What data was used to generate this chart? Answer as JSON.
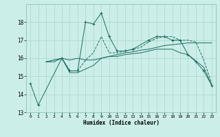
{
  "xlabel": "Humidex (Indice chaleur)",
  "bg_color": "#cceee8",
  "grid_color": "#aad4ce",
  "line_color": "#1a6b5e",
  "xlim": [
    -0.5,
    23.5
  ],
  "ylim": [
    13,
    19
  ],
  "yticks": [
    13,
    14,
    15,
    16,
    17,
    18
  ],
  "xticks": [
    0,
    1,
    2,
    3,
    4,
    5,
    6,
    7,
    8,
    9,
    10,
    11,
    12,
    13,
    14,
    15,
    16,
    17,
    18,
    19,
    20,
    21,
    22,
    23
  ],
  "series": [
    {
      "x": [
        0,
        1,
        4,
        5,
        6,
        7,
        8,
        9,
        10,
        11,
        12,
        13,
        15,
        16,
        17,
        18,
        19,
        20,
        21,
        22,
        23
      ],
      "y": [
        14.6,
        13.4,
        16.0,
        15.3,
        15.3,
        18.0,
        17.9,
        18.5,
        17.2,
        16.4,
        16.4,
        16.5,
        17.0,
        17.2,
        17.2,
        17.0,
        17.0,
        16.2,
        15.8,
        15.3,
        14.5
      ],
      "marker": true,
      "linestyle": "solid"
    },
    {
      "x": [
        2,
        3,
        4,
        5,
        6,
        7,
        8,
        9,
        10,
        11,
        12,
        13,
        14,
        15,
        16,
        17,
        18,
        19,
        20,
        21,
        22,
        23
      ],
      "y": [
        15.8,
        15.9,
        16.0,
        15.9,
        16.0,
        15.9,
        15.9,
        16.0,
        16.1,
        16.2,
        16.3,
        16.35,
        16.45,
        16.5,
        16.6,
        16.7,
        16.75,
        16.8,
        16.85,
        16.85,
        16.85,
        16.85
      ],
      "marker": false,
      "linestyle": "solid"
    },
    {
      "x": [
        2,
        3,
        4,
        5,
        6,
        7,
        8,
        9,
        10,
        11,
        12,
        13,
        14,
        15,
        16,
        17,
        18,
        19,
        20,
        21,
        22,
        23
      ],
      "y": [
        15.8,
        15.9,
        16.0,
        15.3,
        15.3,
        15.9,
        16.3,
        17.2,
        16.3,
        16.3,
        16.4,
        16.5,
        16.6,
        16.9,
        17.1,
        17.2,
        17.2,
        17.0,
        17.0,
        16.9,
        15.9,
        14.6
      ],
      "marker": false,
      "linestyle": "dashed"
    },
    {
      "x": [
        2,
        3,
        4,
        5,
        6,
        7,
        8,
        9,
        10,
        11,
        12,
        13,
        14,
        15,
        16,
        17,
        18,
        19,
        20,
        21,
        22,
        23
      ],
      "y": [
        15.8,
        15.8,
        16.0,
        15.2,
        15.2,
        15.4,
        15.6,
        16.0,
        16.1,
        16.1,
        16.2,
        16.25,
        16.3,
        16.4,
        16.5,
        16.5,
        16.5,
        16.3,
        16.2,
        15.85,
        15.5,
        14.5
      ],
      "marker": false,
      "linestyle": "solid"
    }
  ]
}
